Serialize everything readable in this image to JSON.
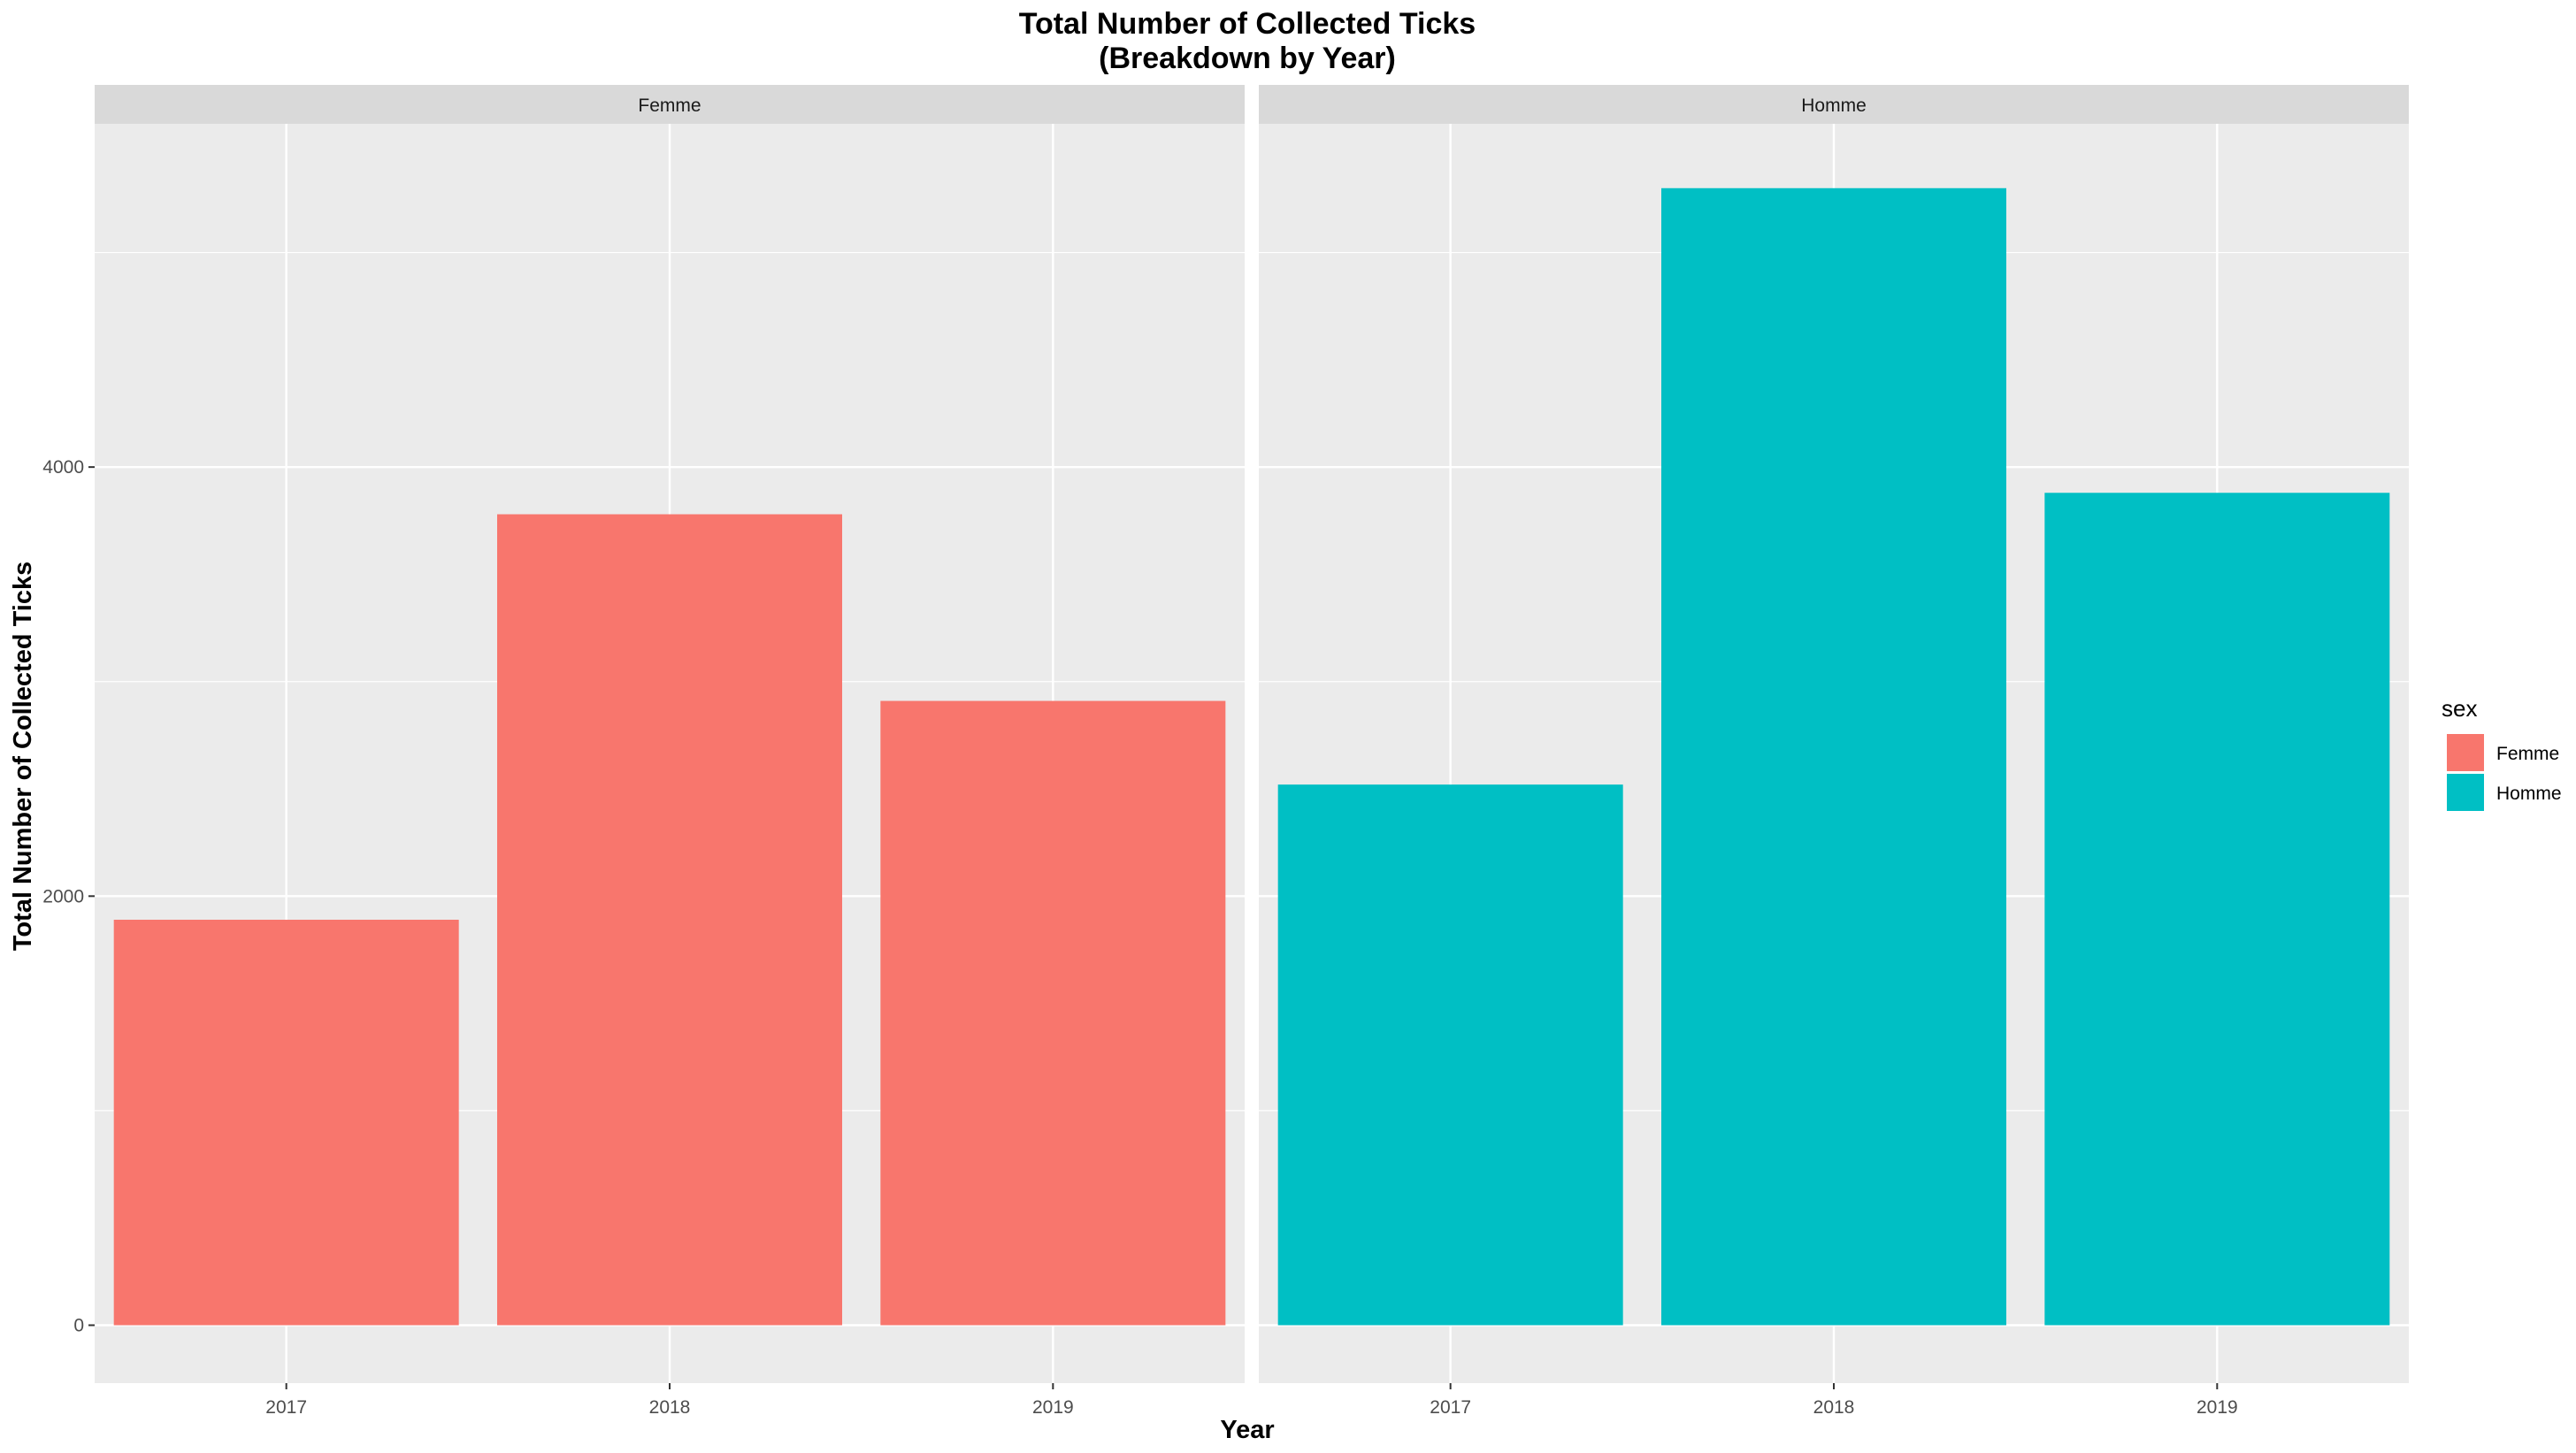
{
  "chart_data": {
    "type": "bar",
    "title": "Total Number of Collected Ticks",
    "subtitle": "(Breakdown by Year)",
    "xlabel": "Year",
    "ylabel": "Total Number of Collected Ticks",
    "ylim": [
      -270,
      5600
    ],
    "yticks": [
      0,
      2000,
      4000
    ],
    "yticks_labels": [
      "0",
      "2000",
      "4000"
    ],
    "grid": true,
    "categories": [
      "2017",
      "2018",
      "2019"
    ],
    "facets": [
      {
        "label": "Femme",
        "series": "Femme",
        "values": [
          1890,
          3780,
          2910
        ]
      },
      {
        "label": "Homme",
        "series": "Homme",
        "values": [
          2520,
          5300,
          3880
        ]
      }
    ],
    "legend": {
      "title": "sex",
      "placement": "right",
      "entries": [
        {
          "name": "Femme",
          "color": "#F8766D"
        },
        {
          "name": "Homme",
          "color": "#00BFC4"
        }
      ]
    },
    "colors": {
      "panel_bg": "#EBEBEB",
      "strip_bg": "#D9D9D9",
      "grid_major": "#FFFFFF",
      "text": "#000000",
      "tick_text": "#4D4D4D"
    }
  }
}
